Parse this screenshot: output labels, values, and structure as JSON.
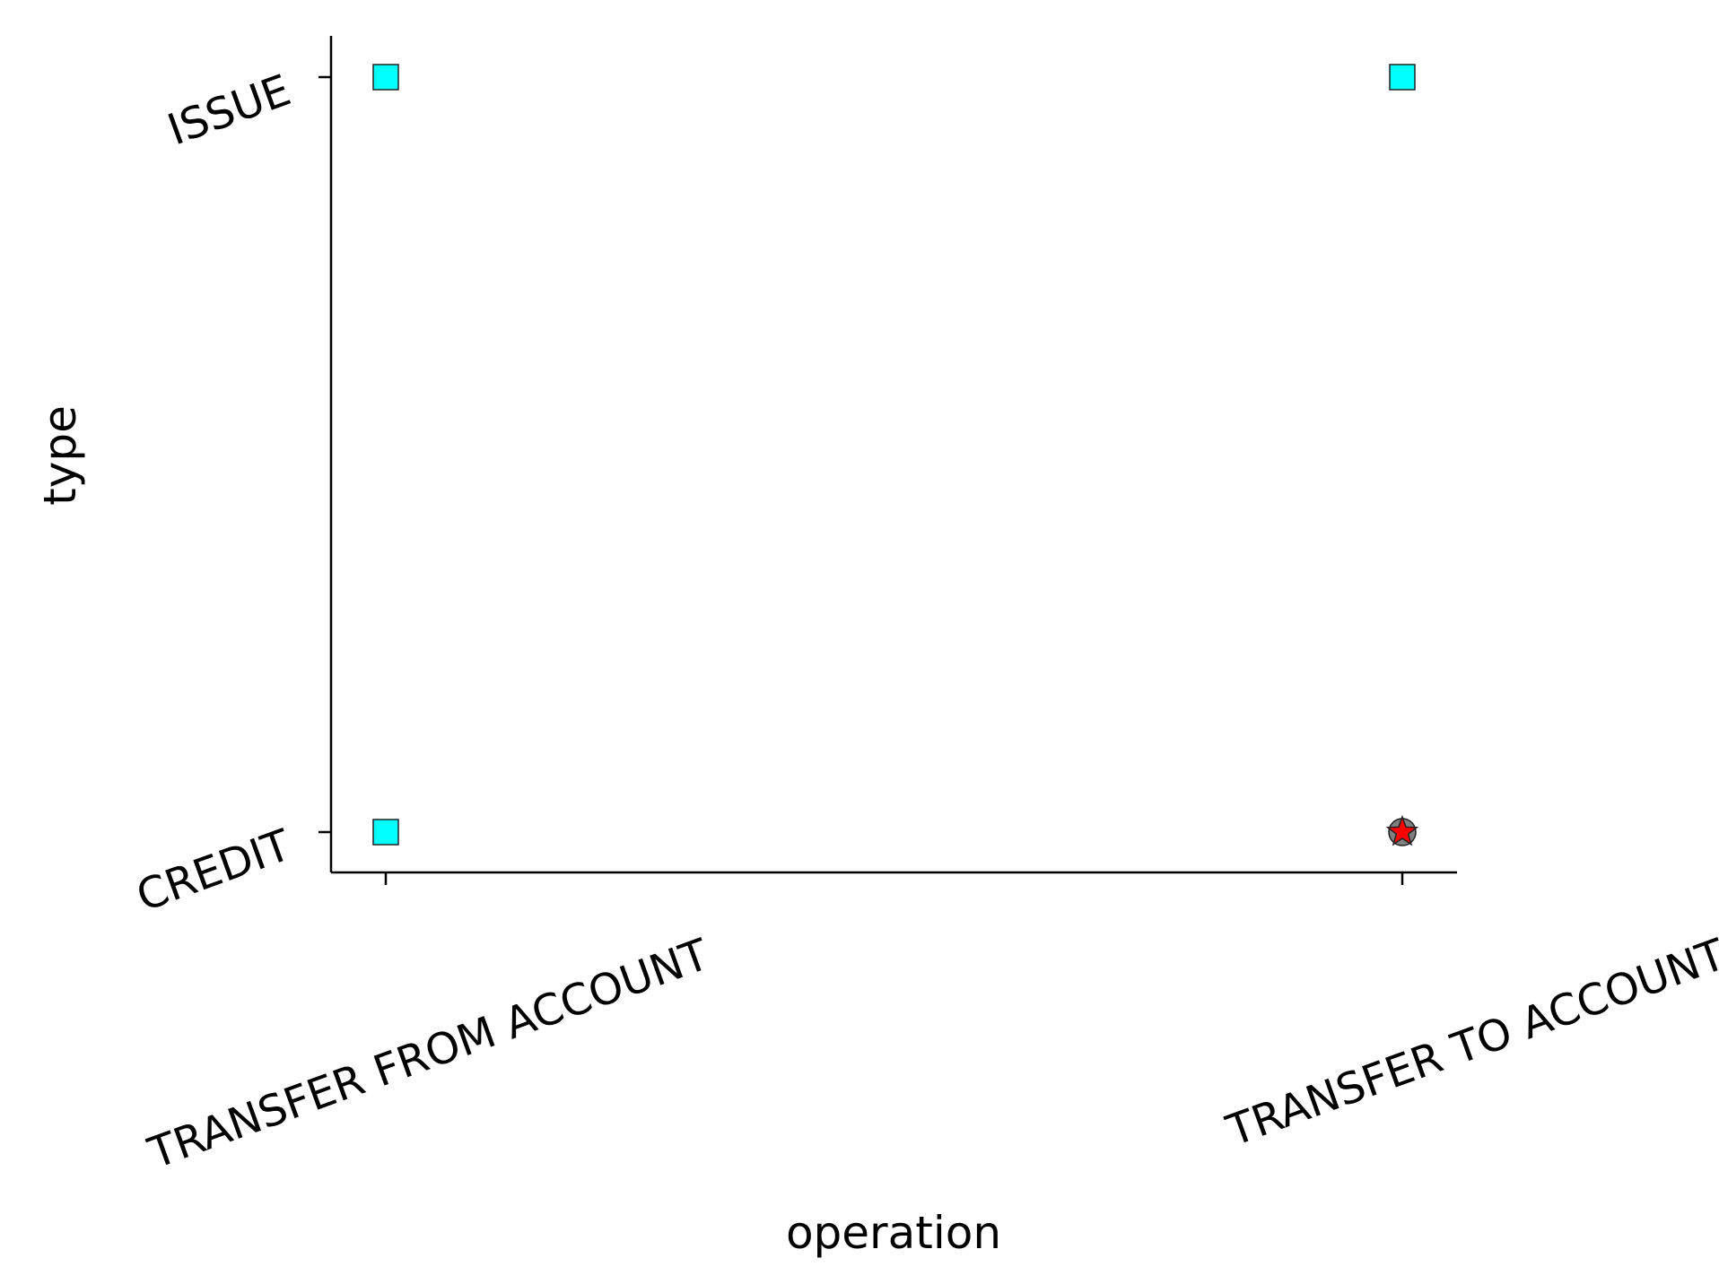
{
  "chart_data": {
    "type": "scatter",
    "title": "",
    "xlabel": "operation",
    "ylabel": "type",
    "x_categories": [
      "TRANSFER FROM ACCOUNT",
      "TRANSFER TO ACCOUNT"
    ],
    "y_categories": [
      "CREDIT",
      "ISSUE"
    ],
    "grid": false,
    "legend": "none",
    "series": [
      {
        "marker": "square",
        "color": "#00FFFF",
        "points": [
          {
            "x": "TRANSFER FROM ACCOUNT",
            "y": "ISSUE"
          },
          {
            "x": "TRANSFER FROM ACCOUNT",
            "y": "CREDIT"
          },
          {
            "x": "TRANSFER TO ACCOUNT",
            "y": "ISSUE"
          }
        ]
      },
      {
        "marker": "circle",
        "color": "#808080",
        "points": [
          {
            "x": "TRANSFER TO ACCOUNT",
            "y": "CREDIT"
          }
        ]
      },
      {
        "marker": "star",
        "color": "#FF0000",
        "points": [
          {
            "x": "TRANSFER TO ACCOUNT",
            "y": "CREDIT"
          }
        ]
      }
    ]
  }
}
